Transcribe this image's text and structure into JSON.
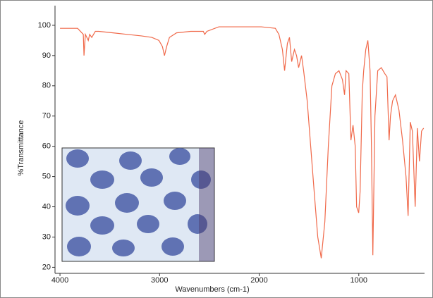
{
  "chart_data": {
    "type": "line",
    "x_label": "Wavenumbers (cm-1)",
    "y_label": "%Transmittance",
    "x": [
      4000,
      3894,
      3823,
      3766,
      3759,
      3745,
      3716,
      3702,
      3681,
      3645,
      3610,
      3468,
      3326,
      3184,
      3078,
      3007,
      2972,
      2951,
      2929,
      2901,
      2830,
      2688,
      2561,
      2547,
      2525,
      2405,
      2263,
      2121,
      1979,
      1838,
      1802,
      1767,
      1745,
      1717,
      1696,
      1674,
      1646,
      1625,
      1604,
      1575,
      1554,
      1518,
      1483,
      1448,
      1412,
      1377,
      1341,
      1306,
      1270,
      1235,
      1199,
      1164,
      1143,
      1128,
      1100,
      1079,
      1058,
      1036,
      1022,
      1001,
      987,
      965,
      951,
      930,
      909,
      887,
      873,
      859,
      838,
      810,
      774,
      739,
      717,
      696,
      682,
      661,
      632,
      597,
      561,
      526,
      505,
      483,
      462,
      434,
      412,
      391,
      370,
      349
    ],
    "series": [
      {
        "name": "%Transmittance",
        "color": "#f0694a",
        "values": [
          99,
          99,
          99,
          97,
          90,
          97,
          95,
          97,
          96,
          98,
          98,
          97.5,
          97,
          96.5,
          96,
          95,
          93,
          90,
          93,
          96,
          97.5,
          98,
          98,
          97,
          98,
          99.5,
          99.5,
          99.5,
          99.5,
          99,
          97,
          92,
          85,
          94,
          96,
          88,
          92,
          90,
          86,
          90,
          85,
          75,
          60,
          45,
          30,
          23,
          35,
          60,
          80,
          84,
          85,
          82,
          77,
          85,
          84,
          62,
          67,
          60,
          40,
          38,
          45,
          78,
          85,
          92,
          95,
          85,
          60,
          24,
          70,
          85,
          86,
          84,
          83,
          62,
          70,
          75,
          77,
          72,
          62,
          50,
          37,
          68,
          65,
          40,
          66,
          55,
          65,
          66
        ]
      }
    ],
    "xlim": [
      4050,
      340
    ],
    "ylim": [
      18,
      106.5
    ],
    "xticks": [
      4000,
      3000,
      2000,
      1000
    ],
    "yticks": [
      20,
      30,
      40,
      50,
      60,
      70,
      80,
      90,
      100
    ],
    "grid": false
  }
}
